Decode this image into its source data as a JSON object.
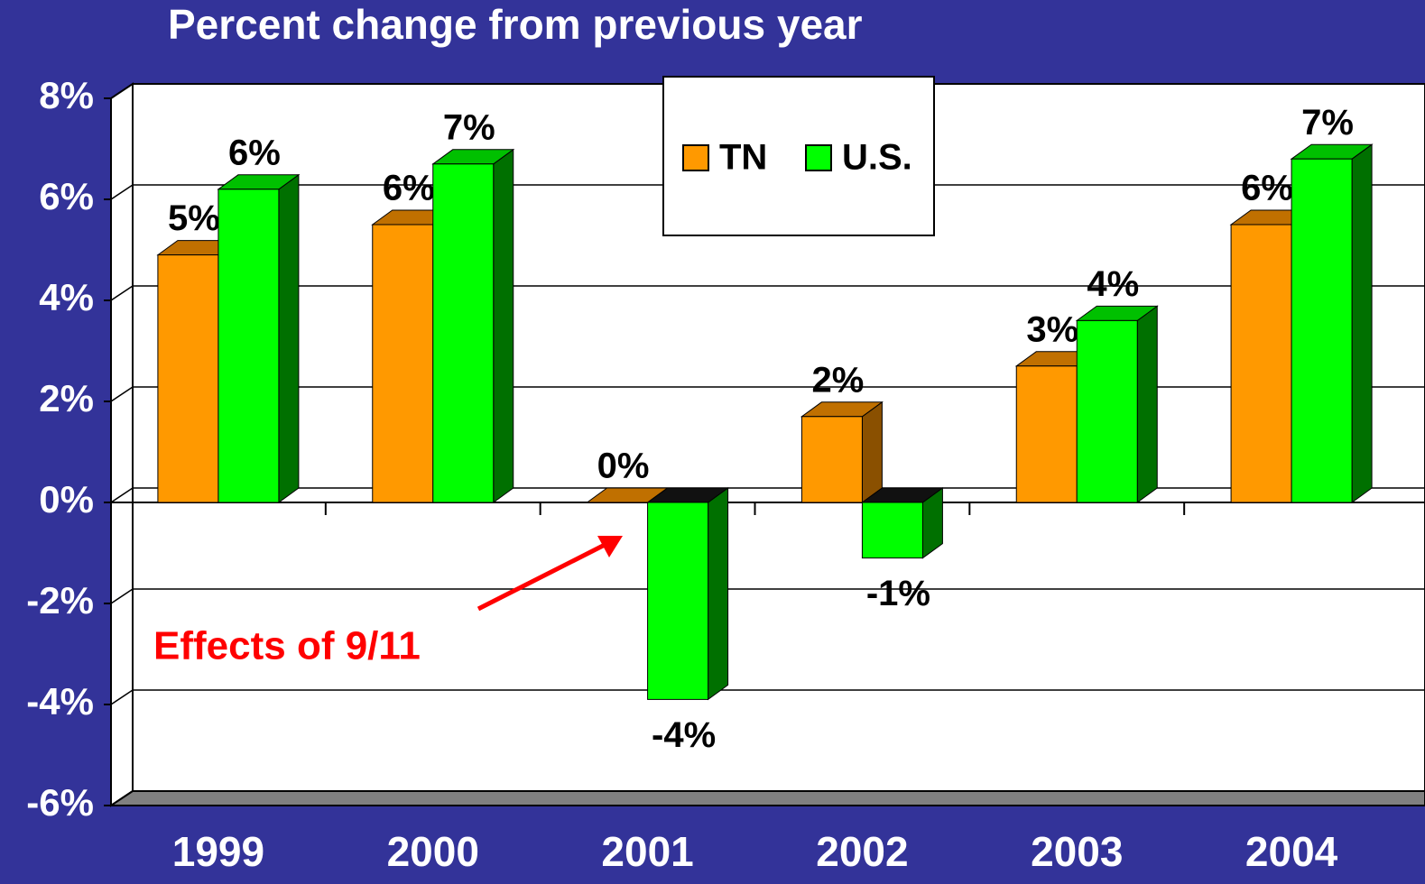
{
  "chart_data": {
    "type": "bar3d",
    "title": "Percent change from previous year",
    "annotation": "Effects of 9/11",
    "categories": [
      "1999",
      "2000",
      "2001",
      "2002",
      "2003",
      "2004"
    ],
    "series": [
      {
        "name": "TN",
        "color": "#ff9900",
        "values": [
          4.9,
          5.5,
          0.0,
          1.7,
          2.7,
          5.5
        ],
        "value_labels": [
          "5%",
          "6%",
          "0%",
          "2%",
          "3%",
          "6%"
        ]
      },
      {
        "name": "U.S.",
        "color": "#00ff00",
        "values": [
          6.2,
          6.7,
          -3.9,
          -1.1,
          3.6,
          6.8
        ],
        "value_labels": [
          "6%",
          "7%",
          "-4%",
          "-1%",
          "4%",
          "7%"
        ]
      }
    ],
    "ylim": [
      -6,
      8
    ],
    "yticks": [
      {
        "value": -6,
        "label": "-6%"
      },
      {
        "value": -4,
        "label": "-4%"
      },
      {
        "value": -2,
        "label": "-2%"
      },
      {
        "value": 0,
        "label": "0%"
      },
      {
        "value": 2,
        "label": "2%"
      },
      {
        "value": 4,
        "label": "4%"
      },
      {
        "value": 6,
        "label": "6%"
      },
      {
        "value": 8,
        "label": "8%"
      }
    ],
    "grid": true,
    "legend": "top"
  }
}
